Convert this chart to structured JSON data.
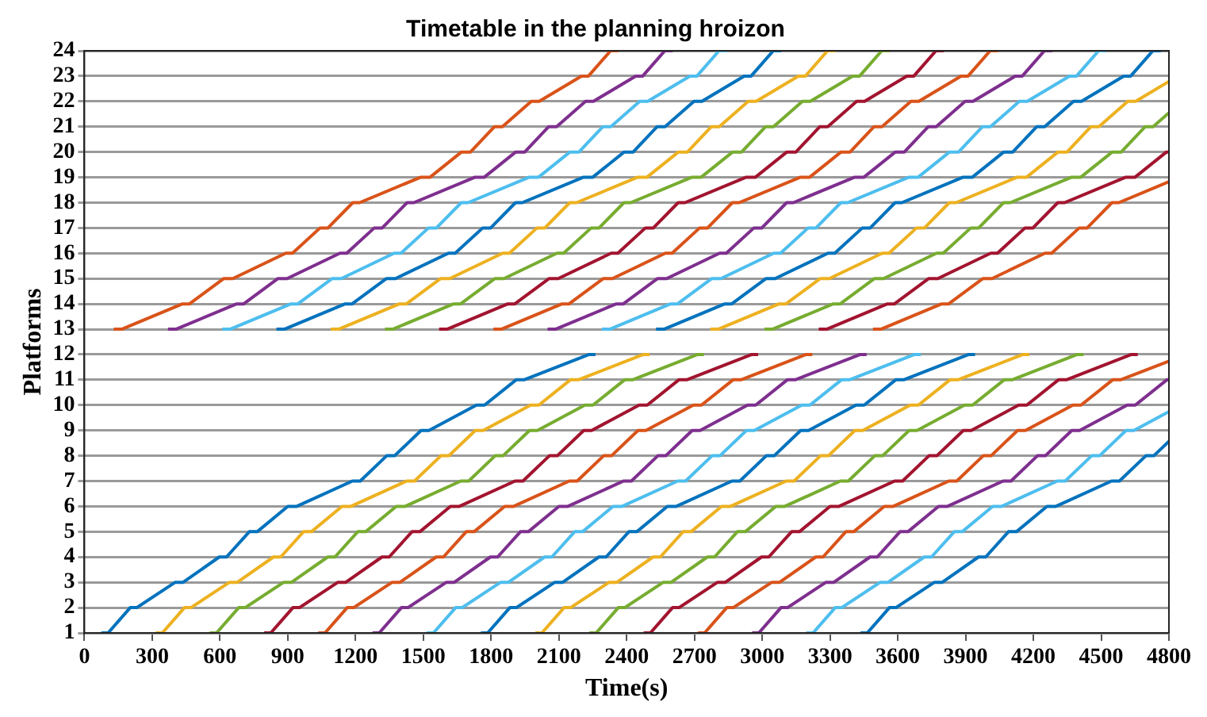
{
  "chart_data": {
    "type": "line",
    "title": "Timetable in the planning hroizon",
    "xlabel": "Time(s)",
    "ylabel": "Platforms",
    "xlim": [
      0,
      4800
    ],
    "xticks": [
      0,
      300,
      600,
      900,
      1200,
      1500,
      1800,
      2100,
      2400,
      2700,
      3000,
      3300,
      3600,
      3900,
      4200,
      4500,
      4800
    ],
    "ylim": [
      1,
      24
    ],
    "yticks": [
      1,
      2,
      3,
      4,
      5,
      6,
      7,
      8,
      9,
      10,
      11,
      12,
      13,
      14,
      15,
      16,
      17,
      18,
      19,
      20,
      21,
      22,
      23,
      24
    ],
    "grid": "y",
    "legend": false,
    "marker": "none",
    "line_style": "solid",
    "series": [
      {
        "color": "#0072bd",
        "x": [
          75,
          105,
          203,
          232,
          402,
          437,
          597,
          629,
          730,
          765,
          900,
          940,
          1186,
          1221,
          1338,
          1373,
          1490,
          1525,
          1735,
          1771,
          1911,
          1946,
          2234,
          2262
        ],
        "values": [
          1,
          1,
          2,
          2,
          3,
          3,
          4,
          4,
          5,
          5,
          6,
          6,
          7,
          7,
          8,
          8,
          9,
          9,
          10,
          10,
          11,
          11,
          12,
          12
        ]
      },
      {
        "color": "#edb120",
        "x": [
          315,
          345,
          443,
          472,
          642,
          677,
          837,
          869,
          970,
          1005,
          1140,
          1180,
          1426,
          1461,
          1578,
          1613,
          1730,
          1765,
          1975,
          2011,
          2151,
          2186,
          2474,
          2502
        ],
        "values": [
          1,
          1,
          2,
          2,
          3,
          3,
          4,
          4,
          5,
          5,
          6,
          6,
          7,
          7,
          8,
          8,
          9,
          9,
          10,
          10,
          11,
          11,
          12,
          12
        ]
      },
      {
        "color": "#77ac30",
        "x": [
          555,
          585,
          683,
          712,
          882,
          917,
          1077,
          1109,
          1210,
          1245,
          1380,
          1420,
          1666,
          1701,
          1818,
          1853,
          1970,
          2005,
          2215,
          2251,
          2391,
          2426,
          2714,
          2742
        ],
        "values": [
          1,
          1,
          2,
          2,
          3,
          3,
          4,
          4,
          5,
          5,
          6,
          6,
          7,
          7,
          8,
          8,
          9,
          9,
          10,
          10,
          11,
          11,
          12,
          12
        ]
      },
      {
        "color": "#a2142f",
        "x": [
          795,
          825,
          923,
          952,
          1122,
          1157,
          1317,
          1349,
          1450,
          1485,
          1620,
          1660,
          1906,
          1941,
          2058,
          2093,
          2210,
          2245,
          2455,
          2491,
          2631,
          2666,
          2954,
          2982
        ],
        "values": [
          1,
          1,
          2,
          2,
          3,
          3,
          4,
          4,
          5,
          5,
          6,
          6,
          7,
          7,
          8,
          8,
          9,
          9,
          10,
          10,
          11,
          11,
          12,
          12
        ]
      },
      {
        "color": "#d95319",
        "x": [
          1035,
          1065,
          1163,
          1192,
          1362,
          1397,
          1557,
          1589,
          1690,
          1725,
          1860,
          1900,
          2146,
          2181,
          2298,
          2333,
          2450,
          2485,
          2695,
          2731,
          2871,
          2906,
          3194,
          3222
        ],
        "values": [
          1,
          1,
          2,
          2,
          3,
          3,
          4,
          4,
          5,
          5,
          6,
          6,
          7,
          7,
          8,
          8,
          9,
          9,
          10,
          10,
          11,
          11,
          12,
          12
        ]
      },
      {
        "color": "#7e2f8e",
        "x": [
          1275,
          1305,
          1403,
          1432,
          1602,
          1637,
          1797,
          1829,
          1930,
          1965,
          2100,
          2140,
          2386,
          2421,
          2538,
          2573,
          2690,
          2725,
          2935,
          2971,
          3111,
          3146,
          3434,
          3462
        ],
        "values": [
          1,
          1,
          2,
          2,
          3,
          3,
          4,
          4,
          5,
          5,
          6,
          6,
          7,
          7,
          8,
          8,
          9,
          9,
          10,
          10,
          11,
          11,
          12,
          12
        ]
      },
      {
        "color": "#4dbeee",
        "x": [
          1515,
          1545,
          1643,
          1672,
          1842,
          1877,
          2037,
          2069,
          2170,
          2205,
          2340,
          2380,
          2626,
          2661,
          2778,
          2813,
          2930,
          2965,
          3175,
          3211,
          3351,
          3386,
          3674,
          3702
        ],
        "values": [
          1,
          1,
          2,
          2,
          3,
          3,
          4,
          4,
          5,
          5,
          6,
          6,
          7,
          7,
          8,
          8,
          9,
          9,
          10,
          10,
          11,
          11,
          12,
          12
        ]
      },
      {
        "color": "#0072bd",
        "x": [
          1755,
          1785,
          1883,
          1912,
          2082,
          2117,
          2277,
          2309,
          2410,
          2445,
          2580,
          2620,
          2866,
          2901,
          3018,
          3053,
          3170,
          3205,
          3415,
          3451,
          3591,
          3626,
          3914,
          3942
        ],
        "values": [
          1,
          1,
          2,
          2,
          3,
          3,
          4,
          4,
          5,
          5,
          6,
          6,
          7,
          7,
          8,
          8,
          9,
          9,
          10,
          10,
          11,
          11,
          12,
          12
        ]
      },
      {
        "color": "#edb120",
        "x": [
          1995,
          2025,
          2123,
          2152,
          2322,
          2357,
          2517,
          2549,
          2650,
          2685,
          2820,
          2860,
          3106,
          3141,
          3258,
          3293,
          3410,
          3445,
          3655,
          3691,
          3831,
          3866,
          4154,
          4182
        ],
        "values": [
          1,
          1,
          2,
          2,
          3,
          3,
          4,
          4,
          5,
          5,
          6,
          6,
          7,
          7,
          8,
          8,
          9,
          9,
          10,
          10,
          11,
          11,
          12,
          12
        ]
      },
      {
        "color": "#77ac30",
        "x": [
          2235,
          2265,
          2363,
          2392,
          2562,
          2597,
          2757,
          2789,
          2890,
          2925,
          3060,
          3100,
          3346,
          3381,
          3498,
          3533,
          3650,
          3685,
          3895,
          3931,
          4071,
          4106,
          4394,
          4422
        ],
        "values": [
          1,
          1,
          2,
          2,
          3,
          3,
          4,
          4,
          5,
          5,
          6,
          6,
          7,
          7,
          8,
          8,
          9,
          9,
          10,
          10,
          11,
          11,
          12,
          12
        ]
      },
      {
        "color": "#a2142f",
        "x": [
          2475,
          2505,
          2603,
          2632,
          2802,
          2837,
          2997,
          3029,
          3130,
          3165,
          3300,
          3340,
          3586,
          3621,
          3738,
          3773,
          3890,
          3925,
          4135,
          4171,
          4311,
          4346,
          4634,
          4662
        ],
        "values": [
          1,
          1,
          2,
          2,
          3,
          3,
          4,
          4,
          5,
          5,
          6,
          6,
          7,
          7,
          8,
          8,
          9,
          9,
          10,
          10,
          11,
          11,
          12,
          12
        ]
      },
      {
        "color": "#d95319",
        "x": [
          2715,
          2745,
          2843,
          2872,
          3042,
          3077,
          3237,
          3269,
          3370,
          3405,
          3540,
          3580,
          3826,
          3861,
          3978,
          4013,
          4130,
          4165,
          4375,
          4411,
          4551,
          4586,
          4800
        ],
        "values": [
          1,
          1,
          2,
          2,
          3,
          3,
          4,
          4,
          5,
          5,
          6,
          6,
          7,
          7,
          8,
          8,
          9,
          9,
          10,
          10,
          11,
          11,
          11.74
        ]
      },
      {
        "color": "#7e2f8e",
        "x": [
          2955,
          2985,
          3083,
          3112,
          3282,
          3317,
          3477,
          3509,
          3610,
          3645,
          3780,
          3820,
          4066,
          4101,
          4218,
          4253,
          4370,
          4405,
          4615,
          4651,
          4791,
          4800
        ],
        "values": [
          1,
          1,
          2,
          2,
          3,
          3,
          4,
          4,
          5,
          5,
          6,
          6,
          7,
          7,
          8,
          8,
          9,
          9,
          10,
          10,
          11,
          11
        ]
      },
      {
        "color": "#4dbeee",
        "x": [
          3195,
          3225,
          3323,
          3352,
          3522,
          3557,
          3717,
          3749,
          3850,
          3885,
          4020,
          4060,
          4306,
          4341,
          4458,
          4493,
          4610,
          4645,
          4800
        ],
        "values": [
          1,
          1,
          2,
          2,
          3,
          3,
          4,
          4,
          5,
          5,
          6,
          6,
          7,
          7,
          8,
          8,
          9,
          9,
          9.74
        ]
      },
      {
        "color": "#0072bd",
        "x": [
          3435,
          3465,
          3563,
          3592,
          3762,
          3797,
          3957,
          3989,
          4090,
          4125,
          4260,
          4300,
          4546,
          4581,
          4698,
          4733,
          4800
        ],
        "values": [
          1,
          1,
          2,
          2,
          3,
          3,
          4,
          4,
          5,
          5,
          6,
          6,
          7,
          7,
          8,
          8,
          8.57
        ]
      },
      {
        "color": "#d95319",
        "x": [
          130,
          165,
          434,
          465,
          617,
          657,
          891,
          921,
          1043,
          1078,
          1188,
          1218,
          1487,
          1529,
          1669,
          1709,
          1815,
          1850,
          1978,
          2013,
          2200,
          2231,
          2329,
          2364
        ],
        "values": [
          13,
          13,
          14,
          14,
          15,
          15,
          16,
          16,
          17,
          17,
          18,
          18,
          19,
          19,
          20,
          20,
          21,
          21,
          22,
          22,
          23,
          23,
          24,
          24
        ]
      },
      {
        "color": "#7e2f8e",
        "x": [
          370,
          405,
          674,
          705,
          857,
          897,
          1131,
          1161,
          1283,
          1318,
          1428,
          1458,
          1727,
          1769,
          1909,
          1949,
          2055,
          2090,
          2218,
          2253,
          2440,
          2471,
          2569,
          2604
        ],
        "values": [
          13,
          13,
          14,
          14,
          15,
          15,
          16,
          16,
          17,
          17,
          18,
          18,
          19,
          19,
          20,
          20,
          21,
          21,
          22,
          22,
          23,
          23,
          24,
          24
        ]
      },
      {
        "color": "#4dbeee",
        "x": [
          610,
          645,
          914,
          945,
          1097,
          1137,
          1371,
          1401,
          1523,
          1558,
          1668,
          1698,
          1967,
          2009,
          2149,
          2189,
          2295,
          2330,
          2458,
          2493,
          2680,
          2711,
          2809,
          2844
        ],
        "values": [
          13,
          13,
          14,
          14,
          15,
          15,
          16,
          16,
          17,
          17,
          18,
          18,
          19,
          19,
          20,
          20,
          21,
          21,
          22,
          22,
          23,
          23,
          24,
          24
        ]
      },
      {
        "color": "#0072bd",
        "x": [
          850,
          885,
          1154,
          1185,
          1337,
          1377,
          1611,
          1641,
          1763,
          1798,
          1908,
          1938,
          2207,
          2249,
          2389,
          2429,
          2535,
          2570,
          2698,
          2733,
          2920,
          2951,
          3049,
          3084
        ],
        "values": [
          13,
          13,
          14,
          14,
          15,
          15,
          16,
          16,
          17,
          17,
          18,
          18,
          19,
          19,
          20,
          20,
          21,
          21,
          22,
          22,
          23,
          23,
          24,
          24
        ]
      },
      {
        "color": "#edb120",
        "x": [
          1090,
          1125,
          1394,
          1425,
          1577,
          1617,
          1851,
          1881,
          2003,
          2038,
          2148,
          2178,
          2447,
          2489,
          2629,
          2669,
          2775,
          2810,
          2938,
          2973,
          3160,
          3191,
          3289,
          3324
        ],
        "values": [
          13,
          13,
          14,
          14,
          15,
          15,
          16,
          16,
          17,
          17,
          18,
          18,
          19,
          19,
          20,
          20,
          21,
          21,
          22,
          22,
          23,
          23,
          24,
          24
        ]
      },
      {
        "color": "#77ac30",
        "x": [
          1330,
          1365,
          1634,
          1665,
          1817,
          1857,
          2091,
          2121,
          2243,
          2278,
          2388,
          2418,
          2687,
          2729,
          2869,
          2909,
          3015,
          3050,
          3178,
          3213,
          3400,
          3431,
          3529,
          3564
        ],
        "values": [
          13,
          13,
          14,
          14,
          15,
          15,
          16,
          16,
          17,
          17,
          18,
          18,
          19,
          19,
          20,
          20,
          21,
          21,
          22,
          22,
          23,
          23,
          24,
          24
        ]
      },
      {
        "color": "#a2142f",
        "x": [
          1570,
          1605,
          1874,
          1905,
          2057,
          2097,
          2331,
          2361,
          2483,
          2518,
          2628,
          2658,
          2927,
          2969,
          3109,
          3149,
          3255,
          3290,
          3418,
          3453,
          3640,
          3671,
          3769,
          3804
        ],
        "values": [
          13,
          13,
          14,
          14,
          15,
          15,
          16,
          16,
          17,
          17,
          18,
          18,
          19,
          19,
          20,
          20,
          21,
          21,
          22,
          22,
          23,
          23,
          24,
          24
        ]
      },
      {
        "color": "#d95319",
        "x": [
          1810,
          1845,
          2114,
          2145,
          2297,
          2337,
          2571,
          2601,
          2723,
          2758,
          2868,
          2898,
          3167,
          3209,
          3349,
          3389,
          3495,
          3530,
          3658,
          3693,
          3880,
          3911,
          4009,
          4044
        ],
        "values": [
          13,
          13,
          14,
          14,
          15,
          15,
          16,
          16,
          17,
          17,
          18,
          18,
          19,
          19,
          20,
          20,
          21,
          21,
          22,
          22,
          23,
          23,
          24,
          24
        ]
      },
      {
        "color": "#7e2f8e",
        "x": [
          2050,
          2085,
          2354,
          2385,
          2537,
          2577,
          2811,
          2841,
          2963,
          2998,
          3108,
          3138,
          3407,
          3449,
          3589,
          3629,
          3735,
          3770,
          3898,
          3933,
          4120,
          4151,
          4249,
          4284
        ],
        "values": [
          13,
          13,
          14,
          14,
          15,
          15,
          16,
          16,
          17,
          17,
          18,
          18,
          19,
          19,
          20,
          20,
          21,
          21,
          22,
          22,
          23,
          23,
          24,
          24
        ]
      },
      {
        "color": "#4dbeee",
        "x": [
          2290,
          2325,
          2594,
          2625,
          2777,
          2817,
          3051,
          3081,
          3203,
          3238,
          3348,
          3378,
          3647,
          3689,
          3829,
          3869,
          3975,
          4010,
          4138,
          4173,
          4360,
          4391,
          4489,
          4524
        ],
        "values": [
          13,
          13,
          14,
          14,
          15,
          15,
          16,
          16,
          17,
          17,
          18,
          18,
          19,
          19,
          20,
          20,
          21,
          21,
          22,
          22,
          23,
          23,
          24,
          24
        ]
      },
      {
        "color": "#0072bd",
        "x": [
          2530,
          2565,
          2834,
          2865,
          3017,
          3057,
          3291,
          3321,
          3443,
          3478,
          3588,
          3618,
          3887,
          3929,
          4069,
          4109,
          4215,
          4250,
          4378,
          4413,
          4600,
          4631,
          4729,
          4764
        ],
        "values": [
          13,
          13,
          14,
          14,
          15,
          15,
          16,
          16,
          17,
          17,
          18,
          18,
          19,
          19,
          20,
          20,
          21,
          21,
          22,
          22,
          23,
          23,
          24,
          24
        ]
      },
      {
        "color": "#edb120",
        "x": [
          2770,
          2805,
          3074,
          3105,
          3257,
          3297,
          3531,
          3561,
          3683,
          3718,
          3828,
          3858,
          4127,
          4169,
          4309,
          4349,
          4455,
          4490,
          4618,
          4653,
          4800
        ],
        "values": [
          13,
          13,
          14,
          14,
          15,
          15,
          16,
          16,
          17,
          17,
          18,
          18,
          19,
          19,
          20,
          20,
          21,
          21,
          22,
          22,
          22.79
        ]
      },
      {
        "color": "#77ac30",
        "x": [
          3010,
          3045,
          3314,
          3345,
          3497,
          3537,
          3771,
          3801,
          3923,
          3958,
          4068,
          4098,
          4367,
          4409,
          4549,
          4589,
          4695,
          4730,
          4800
        ],
        "values": [
          13,
          13,
          14,
          14,
          15,
          15,
          16,
          16,
          17,
          17,
          18,
          18,
          19,
          19,
          20,
          20,
          21,
          21,
          21.55
        ]
      },
      {
        "color": "#a2142f",
        "x": [
          3250,
          3285,
          3554,
          3585,
          3737,
          3777,
          4011,
          4041,
          4163,
          4198,
          4308,
          4338,
          4607,
          4649,
          4789,
          4800
        ],
        "values": [
          13,
          13,
          14,
          14,
          15,
          15,
          16,
          16,
          17,
          17,
          18,
          18,
          19,
          19,
          20,
          20
        ]
      },
      {
        "color": "#d95319",
        "x": [
          3490,
          3525,
          3794,
          3825,
          3977,
          4017,
          4251,
          4281,
          4403,
          4438,
          4548,
          4578,
          4800
        ],
        "values": [
          13,
          13,
          14,
          14,
          15,
          15,
          16,
          16,
          17,
          17,
          18,
          18,
          18.83
        ]
      }
    ]
  }
}
